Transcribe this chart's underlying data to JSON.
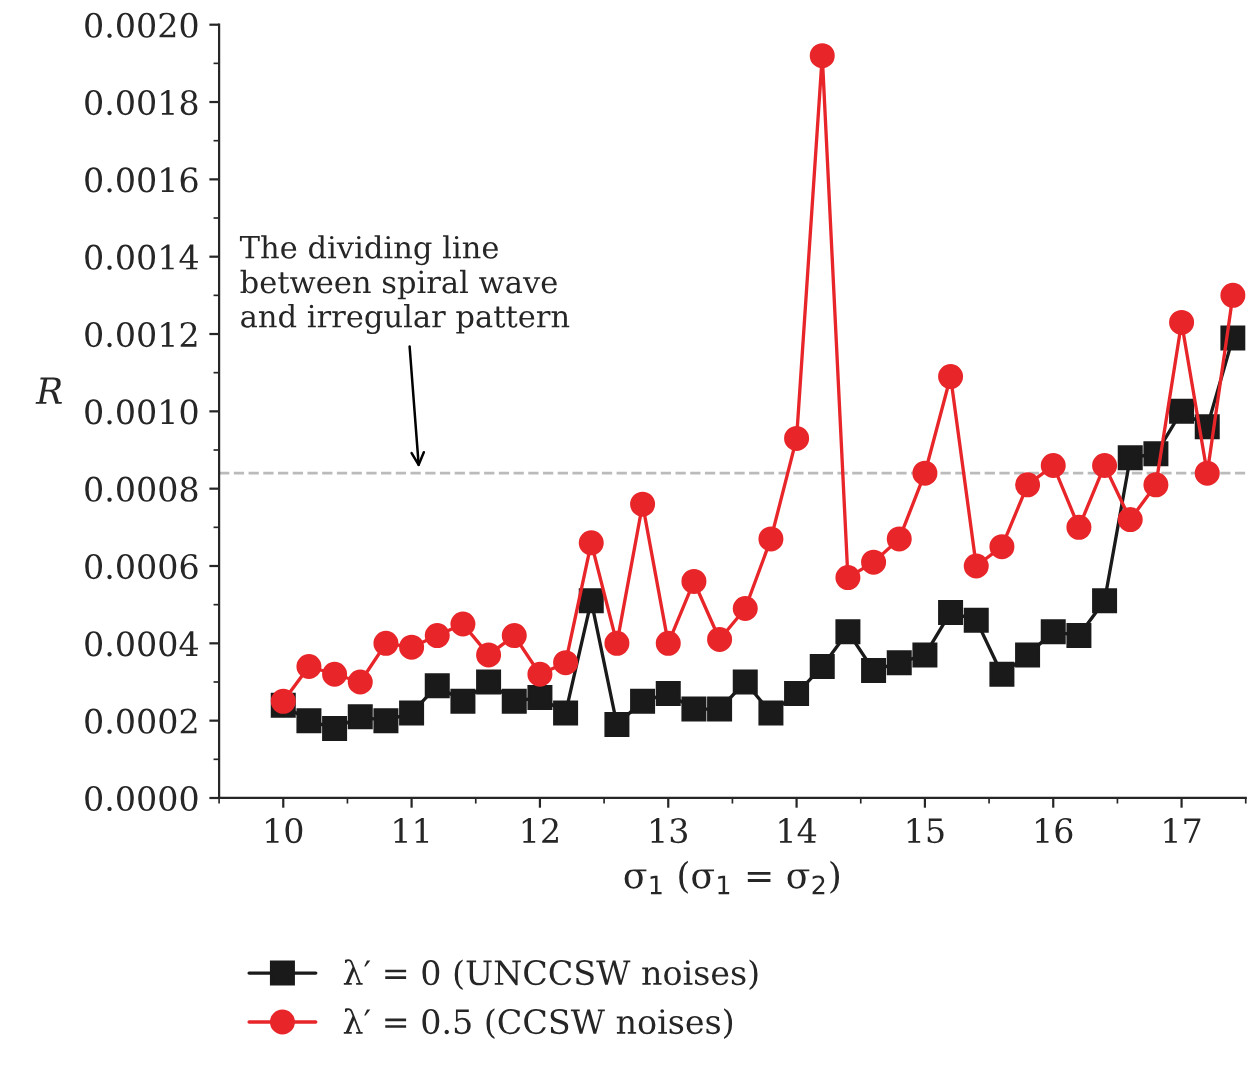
{
  "chart_data": {
    "type": "line",
    "xlabel": "σ$_{1}$ (σ$_{1}$ = σ$_{2}$)",
    "ylabel": "R",
    "x": [
      10,
      10.2,
      10.4,
      10.6,
      10.8,
      11,
      11.2,
      11.4,
      11.6,
      11.8,
      12,
      12.2,
      12.4,
      12.6,
      12.8,
      13,
      13.2,
      13.4,
      13.6,
      13.8,
      14,
      14.2,
      14.4,
      14.6,
      14.8,
      15,
      15.2,
      15.4,
      15.6,
      15.8,
      16,
      16.2,
      16.4,
      16.6,
      16.8,
      17,
      17.2,
      17.4
    ],
    "series": [
      {
        "name": "λ′ = 0 (UNCCSW noises)",
        "color": "#1a1a1a",
        "marker": "square",
        "values": [
          0.00024,
          0.0002,
          0.00018,
          0.00021,
          0.0002,
          0.00022,
          0.00029,
          0.00025,
          0.0003,
          0.00025,
          0.00026,
          0.00022,
          0.00051,
          0.00019,
          0.00025,
          0.00027,
          0.00023,
          0.00023,
          0.0003,
          0.00022,
          0.00027,
          0.00034,
          0.00043,
          0.00033,
          0.00035,
          0.00037,
          0.00048,
          0.00046,
          0.00032,
          0.00037,
          0.00043,
          0.00042,
          0.00051,
          0.00088,
          0.00089,
          0.001,
          0.00096,
          0.00119
        ]
      },
      {
        "name": "λ′ = 0.5 (CCSW noises)",
        "color": "#e8262a",
        "marker": "circle",
        "values": [
          0.00025,
          0.00034,
          0.00032,
          0.0003,
          0.0004,
          0.00039,
          0.00042,
          0.00045,
          0.00037,
          0.00042,
          0.00032,
          0.00035,
          0.00066,
          0.0004,
          0.00076,
          0.0004,
          0.00056,
          0.00041,
          0.00049,
          0.00067,
          0.00093,
          0.00192,
          0.00057,
          0.00061,
          0.00067,
          0.00084,
          0.00109,
          0.0006,
          0.00065,
          0.00081,
          0.00086,
          0.0007,
          0.00086,
          0.00072,
          0.00081,
          0.00123,
          0.00084,
          0.0013
        ]
      }
    ],
    "xlim": [
      9.5,
      17.5
    ],
    "xticks": [
      10,
      11,
      12,
      13,
      14,
      15,
      16,
      17
    ],
    "ylim": [
      0,
      0.002
    ],
    "yticks": [
      {
        "value": 0,
        "label": "0.0000"
      },
      {
        "value": 0.0002,
        "label": "0.0002"
      },
      {
        "value": 0.0004,
        "label": "0.0004"
      },
      {
        "value": 0.0006,
        "label": "0.0006"
      },
      {
        "value": 0.0008,
        "label": "0.0008"
      },
      {
        "value": 0.001,
        "label": "0.0010"
      },
      {
        "value": 0.0012,
        "label": "0.0012"
      },
      {
        "value": 0.0014,
        "label": "0.0014"
      },
      {
        "value": 0.0016,
        "label": "0.0016"
      },
      {
        "value": 0.0018,
        "label": "0.0018"
      },
      {
        "value": 0.002,
        "label": "0.0020"
      }
    ],
    "ref_lines": [
      {
        "axis": "y",
        "value": 0.00084,
        "label": "The dividing line\nbetween spiral wave\nand irregular pattern",
        "color": "#bbbbbb",
        "line_style": "dashed"
      }
    ],
    "grid": false,
    "legend": "bottom"
  }
}
